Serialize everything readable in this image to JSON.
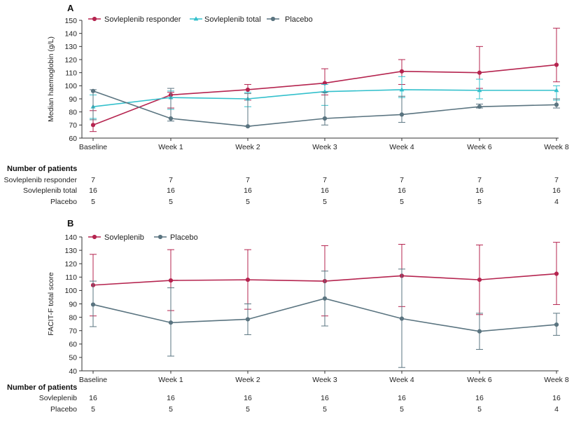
{
  "chart_data": [
    {
      "panel_label": "A",
      "type": "line",
      "ylabel": "Median haemoglobin (g/L)",
      "ylim": [
        60,
        150
      ],
      "yticks": [
        60,
        70,
        80,
        90,
        100,
        110,
        120,
        130,
        140,
        150
      ],
      "categories": [
        "Baseline",
        "Week 1",
        "Week 2",
        "Week 3",
        "Week 4",
        "Week 6",
        "Week 8"
      ],
      "legend_position": "top-left",
      "series": [
        {
          "name": "Sovleplenib responder",
          "color": "#b5244f",
          "marker": "circle",
          "values": [
            70,
            93,
            97,
            102,
            111,
            110,
            116
          ],
          "err_low": [
            65,
            83,
            89,
            93,
            101,
            98,
            103
          ],
          "err_high": [
            81,
            95,
            101,
            113,
            120,
            130,
            144
          ]
        },
        {
          "name": "Sovleplenib total",
          "color": "#33c0cc",
          "marker": "triangle",
          "values": [
            84,
            91,
            90,
            95.5,
            97,
            96.5,
            96.5
          ],
          "err_low": [
            75,
            82,
            84,
            85,
            91,
            90,
            89
          ],
          "err_high": [
            93,
            96,
            95,
            101,
            107,
            105,
            100
          ]
        },
        {
          "name": "Placebo",
          "color": "#5a7480",
          "marker": "circle",
          "values": [
            96,
            75,
            69,
            75,
            78,
            84,
            85.5
          ],
          "err_low": [
            74,
            73,
            69,
            70,
            72,
            83,
            83
          ],
          "err_high": [
            97,
            98,
            94,
            95,
            92,
            86,
            90
          ]
        }
      ],
      "table": {
        "title": "Number of patients",
        "rows": [
          {
            "label": "Sovleplenib responder",
            "values": [
              "7",
              "7",
              "7",
              "7",
              "7",
              "7",
              "7"
            ]
          },
          {
            "label": "Sovleplenib total",
            "values": [
              "16",
              "16",
              "16",
              "16",
              "16",
              "16",
              "16"
            ]
          },
          {
            "label": "Placebo",
            "values": [
              "5",
              "5",
              "5",
              "5",
              "5",
              "5",
              "4"
            ]
          }
        ]
      }
    },
    {
      "panel_label": "B",
      "type": "line",
      "ylabel": "FACIT-F total score",
      "ylim": [
        40,
        140
      ],
      "yticks": [
        40,
        50,
        60,
        70,
        80,
        90,
        100,
        110,
        120,
        130,
        140
      ],
      "categories": [
        "Baseline",
        "Week 1",
        "Week 2",
        "Week 3",
        "Week 4",
        "Week 6",
        "Week 8"
      ],
      "legend_position": "top-left",
      "series": [
        {
          "name": "Sovleplenib",
          "color": "#b5244f",
          "marker": "circle",
          "values": [
            104,
            107.5,
            108,
            107,
            111,
            108,
            112.5
          ],
          "err_low": [
            81,
            85,
            86,
            81,
            88,
            82,
            89.5
          ],
          "err_high": [
            127,
            130.5,
            130.5,
            133.5,
            134.5,
            134,
            136
          ]
        },
        {
          "name": "Placebo",
          "color": "#5a7480",
          "marker": "circle",
          "values": [
            89.5,
            76,
            78.5,
            94,
            79,
            69.5,
            74.5
          ],
          "err_low": [
            73,
            51,
            67,
            73.5,
            42.5,
            56,
            66.5
          ],
          "err_high": [
            107,
            102,
            90,
            114.5,
            116,
            83,
            83
          ]
        }
      ],
      "table": {
        "title": "Number of patients",
        "rows": [
          {
            "label": "Sovleplenib",
            "values": [
              "16",
              "16",
              "16",
              "16",
              "16",
              "16",
              "16"
            ]
          },
          {
            "label": "Placebo",
            "values": [
              "5",
              "5",
              "5",
              "5",
              "5",
              "5",
              "4"
            ]
          }
        ]
      }
    }
  ]
}
